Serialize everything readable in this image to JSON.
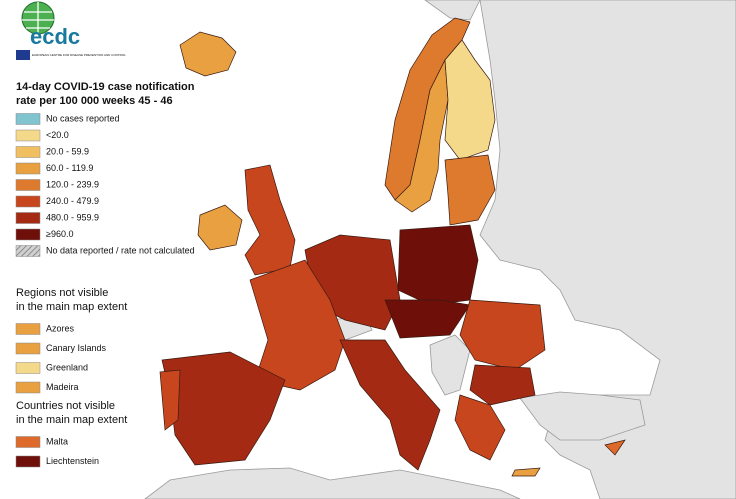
{
  "logo": {
    "text": "ecdc",
    "subtitle": "EUROPEAN CENTRE FOR DISEASE PREVENTION AND CONTROL"
  },
  "legend": {
    "title_lines": [
      "14-day COVID-19 case notification",
      "rate per 100 000 weeks 45 - 46"
    ],
    "items": [
      {
        "label": "No cases reported",
        "color": "#7fc4cf"
      },
      {
        "label": "<20.0",
        "color": "#f5d98b"
      },
      {
        "label": "20.0 - 59.9",
        "color": "#f0c060"
      },
      {
        "label": "60.0 - 119.9",
        "color": "#e8a040"
      },
      {
        "label": "120.0 - 239.9",
        "color": "#dd7a2e"
      },
      {
        "label": "240.0 - 479.9",
        "color": "#c8461e"
      },
      {
        "label": "480.0 - 959.9",
        "color": "#a52a14"
      },
      {
        "label": "≥960.0",
        "color": "#6e0f0a"
      },
      {
        "label": "No data reported / rate not calculated",
        "color": "#9a9a9a",
        "fill": "hatch"
      }
    ]
  },
  "regions": {
    "title_lines": [
      "Regions not visible",
      "in the main map extent"
    ],
    "items": [
      {
        "label": "Azores",
        "color": "#e8a040"
      },
      {
        "label": "Canary Islands",
        "color": "#e8a040"
      },
      {
        "label": "Greenland",
        "color": "#f5d98b"
      },
      {
        "label": "Madeira",
        "color": "#e8a040"
      }
    ]
  },
  "countries": {
    "title_lines": [
      "Countries not visible",
      "in the main map extent"
    ],
    "items": [
      {
        "label": "Malta",
        "color": "#dd6a2a"
      },
      {
        "label": "Liechtenstein",
        "color": "#6e0f0a"
      }
    ]
  }
}
